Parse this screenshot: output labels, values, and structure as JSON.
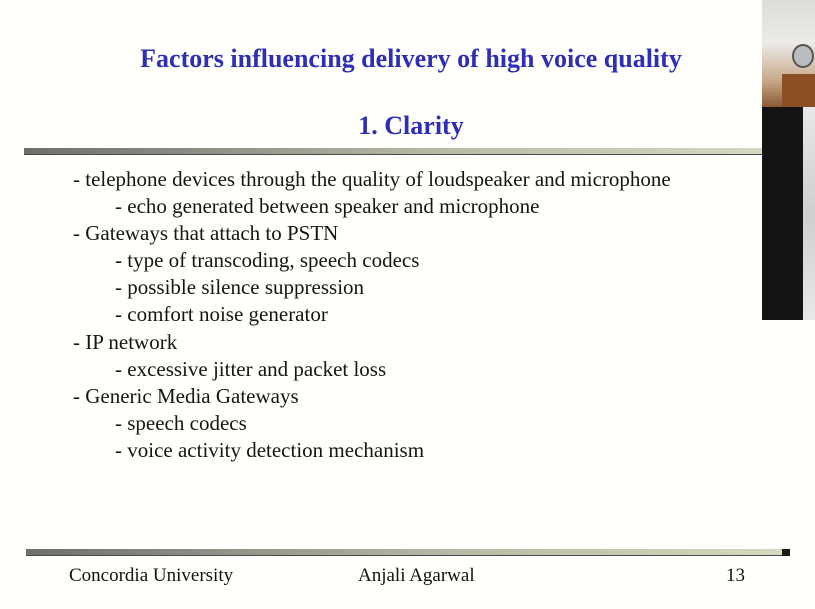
{
  "slide": {
    "title": "Factors influencing delivery of high voice quality",
    "subtitle": "1.  Clarity",
    "bullets": [
      {
        "level": 1,
        "text": "- telephone devices through the quality of loudspeaker and microphone"
      },
      {
        "level": 2,
        "text": "- echo generated between speaker and microphone"
      },
      {
        "level": 1,
        "text": "- Gateways that attach to PSTN"
      },
      {
        "level": 2,
        "text": "- type of transcoding, speech codecs"
      },
      {
        "level": 2,
        "text": "- possible silence suppression"
      },
      {
        "level": 2,
        "text": "- comfort noise generator"
      },
      {
        "level": 1,
        "text": "- IP network"
      },
      {
        "level": 2,
        "text": "- excessive jitter and packet loss"
      },
      {
        "level": 1,
        "text": "- Generic Media Gateways"
      },
      {
        "level": 2,
        "text": "- speech codecs"
      },
      {
        "level": 2,
        "text": "- voice activity detection mechanism"
      }
    ]
  },
  "footer": {
    "institution": "Concordia University",
    "author": "Anjali Agarwal",
    "page_number": "13"
  },
  "colors": {
    "title": "#2f2fb5",
    "text": "#151515",
    "background": "#fffffc"
  }
}
